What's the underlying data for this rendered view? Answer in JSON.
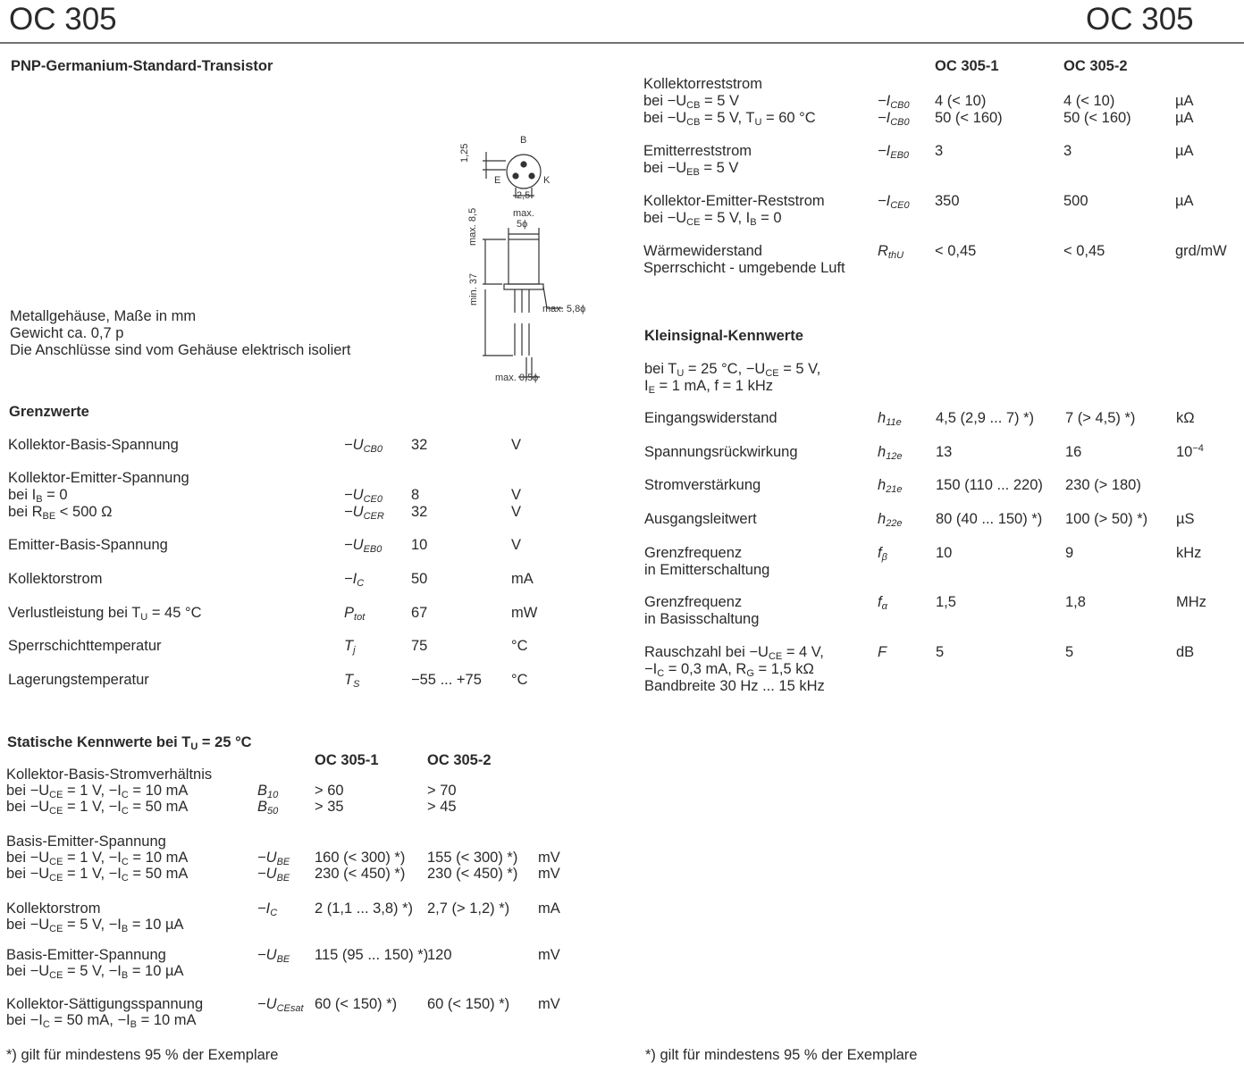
{
  "header": {
    "left": "OC 305",
    "right": "OC 305"
  },
  "left": {
    "subtitle": "PNP-Germanium-Standard-Transistor",
    "drawing": {
      "labels": [
        "B",
        "E",
        "K",
        "1,25",
        "2,5",
        "max.",
        "5ϕ",
        "max. 8,5",
        "min. 37",
        "max. 5,8ϕ",
        "max. 0,5ϕ"
      ]
    },
    "package": [
      "Metallgehäuse, Maße in mm",
      "Gewicht ca. 0,7 p",
      "Die Anschlüsse sind vom Gehäuse elektrisch isoliert"
    ],
    "grenzwerte": {
      "title": "Grenzwerte",
      "groups": [
        [
          {
            "text": "Kollektor-Basis-Spannung",
            "symbol": [
              "−U",
              {
                "sub": "CB0"
              }
            ],
            "values": [
              "32"
            ],
            "unit": "V"
          }
        ],
        [
          {
            "text": "Kollektor-Emitter-Spannung"
          },
          {
            "text": [
              "bei I",
              {
                "sub": "B"
              },
              " = 0"
            ],
            "symbol": [
              "−U",
              {
                "sub": "CE0"
              }
            ],
            "values": [
              "8"
            ],
            "unit": "V"
          },
          {
            "text": [
              "bei R",
              {
                "sub": "BE"
              },
              " < 500 Ω"
            ],
            "symbol": [
              "−U",
              {
                "sub": "CER"
              }
            ],
            "values": [
              "32"
            ],
            "unit": "V"
          }
        ],
        [
          {
            "text": "Emitter-Basis-Spannung",
            "symbol": [
              "−U",
              {
                "sub": "EB0"
              }
            ],
            "values": [
              "10"
            ],
            "unit": "V"
          }
        ],
        [
          {
            "text": "Kollektorstrom",
            "symbol": [
              "−I",
              {
                "sub": "C"
              }
            ],
            "values": [
              "50"
            ],
            "unit": "mA"
          }
        ],
        [
          {
            "text": [
              "Verlustleistung bei T",
              {
                "sub": "U"
              },
              " = 45 °C"
            ],
            "symbol": [
              "P",
              {
                "sub": "tot"
              }
            ],
            "values": [
              "67"
            ],
            "unit": "mW"
          }
        ],
        [
          {
            "text": "Sperrschichttemperatur",
            "symbol": [
              "T",
              {
                "sub": "j"
              }
            ],
            "values": [
              "75"
            ],
            "unit": "°C"
          }
        ],
        [
          {
            "text": "Lagerungstemperatur",
            "symbol": [
              "T",
              {
                "sub": "S"
              }
            ],
            "values": [
              "−55 ... +75"
            ],
            "unit": "°C"
          }
        ]
      ]
    },
    "statisch": {
      "title": [
        "Statische Kennwerte bei T",
        {
          "sub": "U"
        },
        " = 25 °C"
      ],
      "columns": [
        "OC 305-1",
        "OC 305-2"
      ],
      "groups": [
        [
          {
            "text": "Kollektor-Basis-Stromverhältnis"
          },
          {
            "text": [
              "bei −U",
              {
                "sub": "CE"
              },
              " = 1 V, −I",
              {
                "sub": "C"
              },
              " = 10 mA"
            ],
            "symbol": [
              "B",
              {
                "sub": "10"
              }
            ],
            "values": [
              "> 60",
              "> 70"
            ]
          },
          {
            "text": [
              "bei −U",
              {
                "sub": "CE"
              },
              " = 1 V, −I",
              {
                "sub": "C"
              },
              " = 50 mA"
            ],
            "symbol": [
              "B",
              {
                "sub": "50"
              }
            ],
            "values": [
              "> 35",
              "> 45"
            ]
          }
        ],
        [
          {
            "text": "Basis-Emitter-Spannung"
          },
          {
            "text": [
              "bei −U",
              {
                "sub": "CE"
              },
              " = 1 V, −I",
              {
                "sub": "C"
              },
              " = 10 mA"
            ],
            "symbol": [
              "−U",
              {
                "sub": "BE"
              }
            ],
            "values": [
              "160 (< 300) *)",
              "155 (< 300) *)"
            ],
            "unit": "mV"
          },
          {
            "text": [
              "bei −U",
              {
                "sub": "CE"
              },
              " = 1 V, −I",
              {
                "sub": "C"
              },
              " = 50 mA"
            ],
            "symbol": [
              "−U",
              {
                "sub": "BE"
              }
            ],
            "values": [
              "230 (< 450) *)",
              "230 (< 450) *)"
            ],
            "unit": "mV"
          }
        ],
        [
          {
            "text": "Kollektorstrom",
            "symbol": [
              "−I",
              {
                "sub": "C"
              }
            ],
            "values": [
              "2 (1,1 ... 3,8) *)",
              "2,7 (> 1,2) *)"
            ],
            "unit": "mA"
          },
          {
            "text": [
              "bei −U",
              {
                "sub": "CE"
              },
              " = 5 V, −I",
              {
                "sub": "B"
              },
              " = 10 µA"
            ]
          }
        ],
        [
          {
            "text": "Basis-Emitter-Spannung",
            "symbol": [
              "−U",
              {
                "sub": "BE"
              }
            ],
            "values": [
              "115 (95 ... 150) *)",
              "120"
            ],
            "unit": "mV"
          },
          {
            "text": [
              "bei −U",
              {
                "sub": "CE"
              },
              " = 5 V, −I",
              {
                "sub": "B"
              },
              " = 10 µA"
            ]
          }
        ],
        [
          {
            "text": "Kollektor-Sättigungsspannung",
            "symbol": [
              "−U",
              {
                "sub": "CEsat"
              }
            ],
            "values": [
              "60 (< 150) *)",
              "60 (< 150) *)"
            ],
            "unit": "mV"
          },
          {
            "text": [
              "bei −I",
              {
                "sub": "C"
              },
              " = 50 mA, −I",
              {
                "sub": "B"
              },
              " = 10 mA"
            ]
          }
        ]
      ]
    },
    "footnote": "*) gilt für mindestens 95 % der Exemplare"
  },
  "right": {
    "columns": [
      "OC 305-1",
      "OC 305-2"
    ],
    "groups": [
      [
        {
          "text": "Kollektorreststrom"
        },
        {
          "text": [
            "bei −U",
            {
              "sub": "CB"
            },
            " = 5 V"
          ],
          "symbol": [
            "−I",
            {
              "sub": "CB0"
            }
          ],
          "values": [
            "4 (< 10)",
            "4 (< 10)"
          ],
          "unit": "µA"
        },
        {
          "text": [
            "bei −U",
            {
              "sub": "CB"
            },
            " = 5 V, T",
            {
              "sub": "U"
            },
            " = 60 °C"
          ],
          "symbol": [
            "−I",
            {
              "sub": "CB0"
            }
          ],
          "values": [
            "50 (< 160)",
            "50 (< 160)"
          ],
          "unit": "µA"
        }
      ],
      [
        {
          "text": "Emitterreststrom",
          "symbol": [
            "−I",
            {
              "sub": "EB0"
            }
          ],
          "values": [
            "3",
            "3"
          ],
          "unit": "µA"
        },
        {
          "text": [
            "bei −U",
            {
              "sub": "EB"
            },
            " = 5 V"
          ]
        }
      ],
      [
        {
          "text": "Kollektor-Emitter-Reststrom",
          "symbol": [
            "−I",
            {
              "sub": "CE0"
            }
          ],
          "values": [
            "350",
            "500"
          ],
          "unit": "µA"
        },
        {
          "text": [
            "bei −U",
            {
              "sub": "CE"
            },
            " = 5 V, I",
            {
              "sub": "B"
            },
            " = 0"
          ]
        }
      ],
      [
        {
          "text": "Wärmewiderstand",
          "symbol": [
            "R",
            {
              "sub": "thU"
            }
          ],
          "values": [
            "< 0,45",
            "< 0,45"
          ],
          "unit": "grd/mW"
        },
        {
          "text": "Sperrschicht - umgebende Luft"
        }
      ]
    ],
    "kleinsignal": {
      "title": "Kleinsignal-Kennwerte",
      "conditions": [
        [
          "bei T",
          {
            "sub": "U"
          },
          " = 25 °C, −U",
          {
            "sub": "CE"
          },
          " = 5 V,"
        ],
        [
          "I",
          {
            "sub": "E"
          },
          " = 1 mA, f = 1 kHz"
        ]
      ],
      "groups": [
        [
          {
            "text": "Eingangswiderstand",
            "symbol": [
              "h",
              {
                "sub": "11e"
              }
            ],
            "values": [
              "4,5 (2,9 ... 7) *)",
              "7 (> 4,5) *)"
            ],
            "unit": "kΩ"
          }
        ],
        [
          {
            "text": "Spannungsrückwirkung",
            "symbol": [
              "h",
              {
                "sub": "12e"
              }
            ],
            "values": [
              "13",
              "16"
            ],
            "unit": [
              "10",
              {
                "sup": "−4"
              }
            ]
          }
        ],
        [
          {
            "text": "Stromverstärkung",
            "symbol": [
              "h",
              {
                "sub": "21e"
              }
            ],
            "values": [
              "150 (110 ... 220)",
              "230 (> 180)"
            ]
          }
        ],
        [
          {
            "text": "Ausgangsleitwert",
            "symbol": [
              "h",
              {
                "sub": "22e"
              }
            ],
            "values": [
              "80 (40 ... 150) *)",
              "100 (> 50) *)"
            ],
            "unit": "µS"
          }
        ],
        [
          {
            "text": "Grenzfrequenz",
            "symbol": [
              "f",
              {
                "sub": "β"
              }
            ],
            "values": [
              "10",
              "9"
            ],
            "unit": "kHz"
          },
          {
            "text": "in Emitterschaltung"
          }
        ],
        [
          {
            "text": "Grenzfrequenz",
            "symbol": [
              "f",
              {
                "sub": "α"
              }
            ],
            "values": [
              "1,5",
              "1,8"
            ],
            "unit": "MHz"
          },
          {
            "text": "in Basisschaltung"
          }
        ],
        [
          {
            "text": [
              "Rauschzahl bei −U",
              {
                "sub": "CE"
              },
              " = 4 V,"
            ],
            "symbol": "F",
            "values": [
              "5",
              "5"
            ],
            "unit": "dB"
          },
          {
            "text": [
              "−I",
              {
                "sub": "C"
              },
              " = 0,3 mA, R",
              {
                "sub": "G"
              },
              " = 1,5 kΩ"
            ]
          },
          {
            "text": "Bandbreite 30 Hz ... 15 kHz"
          }
        ]
      ]
    },
    "footnote": "*) gilt für mindestens 95 % der Exemplare"
  }
}
